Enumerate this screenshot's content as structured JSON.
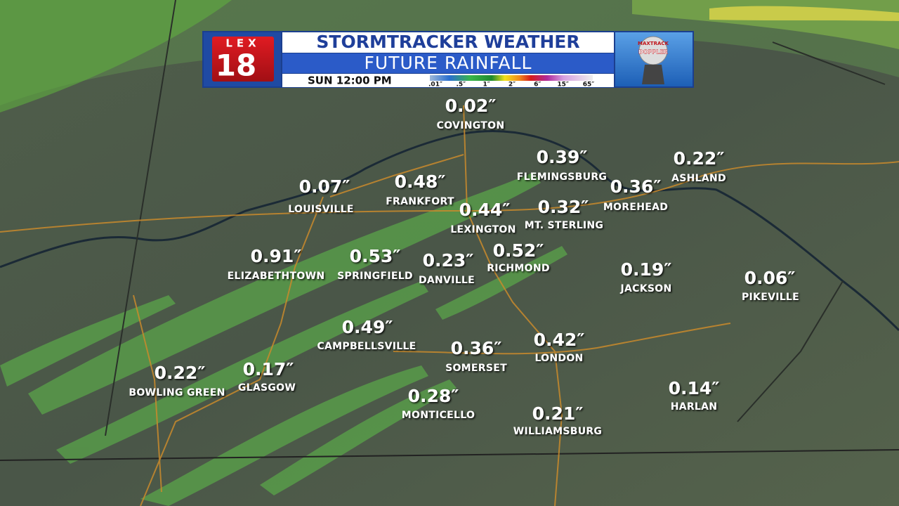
{
  "header": {
    "logo": {
      "letters": "LEX",
      "number": "18"
    },
    "title": "STORMTRACKER WEATHER",
    "subtitle": "FUTURE RAINFALL",
    "time": "SUN 12:00 PM",
    "legend": [
      ".01″",
      ".5″",
      "1″",
      "2″",
      "6″",
      "15″",
      "65″"
    ],
    "radar": {
      "brand": "MAXTRACK",
      "label": "DOPPLER"
    }
  },
  "cities": [
    {
      "value": "0.02″",
      "name": "COVINGTON"
    },
    {
      "value": "0.39″",
      "name": "FLEMINGSBURG"
    },
    {
      "value": "0.22″",
      "name": "ASHLAND"
    },
    {
      "value": "0.07″",
      "name": "LOUISVILLE"
    },
    {
      "value": "0.48″",
      "name": "FRANKFORT"
    },
    {
      "value": "0.36″",
      "name": "MOREHEAD"
    },
    {
      "value": "0.44″",
      "name": "LEXINGTON"
    },
    {
      "value": "0.32″",
      "name": "MT. STERLING"
    },
    {
      "value": "0.91″",
      "name": "ELIZABETHTOWN"
    },
    {
      "value": "0.53″",
      "name": "SPRINGFIELD"
    },
    {
      "value": "0.23″",
      "name": "DANVILLE"
    },
    {
      "value": "0.52″",
      "name": "RICHMOND"
    },
    {
      "value": "0.19″",
      "name": "JACKSON"
    },
    {
      "value": "0.06″",
      "name": "PIKEVILLE"
    },
    {
      "value": "0.49″",
      "name": "CAMPBELLSVILLE"
    },
    {
      "value": "0.36″",
      "name": "SOMERSET"
    },
    {
      "value": "0.42″",
      "name": "LONDON"
    },
    {
      "value": "0.22″",
      "name": "BOWLING GREEN"
    },
    {
      "value": "0.17″",
      "name": "GLASGOW"
    },
    {
      "value": "0.28″",
      "name": "MONTICELLO"
    },
    {
      "value": "0.21″",
      "name": "WILLIAMSBURG"
    },
    {
      "value": "0.14″",
      "name": "HARLAN"
    }
  ]
}
